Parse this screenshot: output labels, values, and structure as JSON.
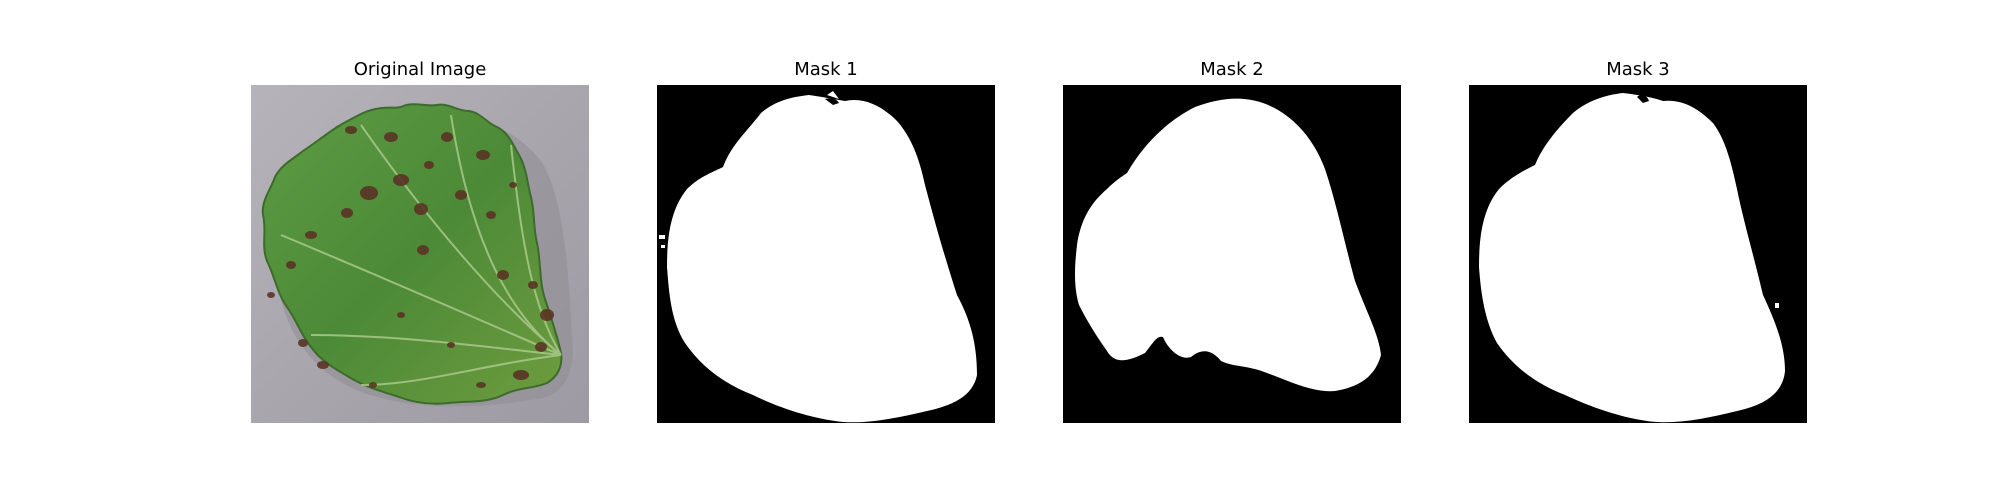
{
  "figure": {
    "panels": [
      {
        "id": "original",
        "title": "Original Image"
      },
      {
        "id": "mask1",
        "title": "Mask 1"
      },
      {
        "id": "mask2",
        "title": "Mask 2"
      },
      {
        "id": "mask3",
        "title": "Mask 3"
      }
    ]
  },
  "colors": {
    "background": "#ffffff",
    "mask_background": "#000000",
    "mask_foreground": "#ffffff",
    "surface_gray": "#a8a5ad",
    "leaf_green": "#4f8a3a",
    "leaf_dark": "#2f5f26",
    "spot_brown": "#5a3425"
  }
}
